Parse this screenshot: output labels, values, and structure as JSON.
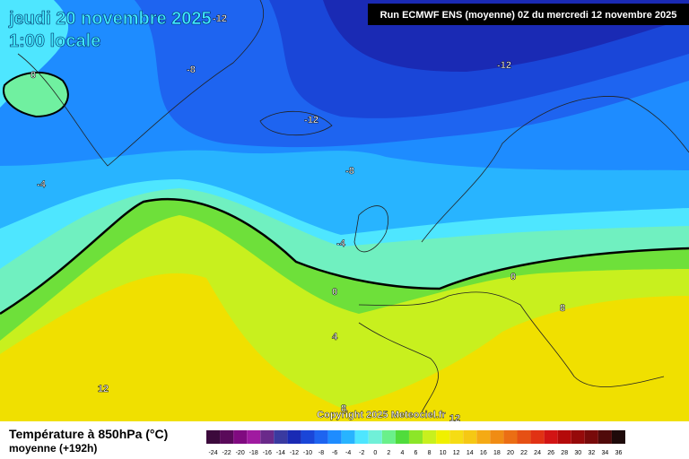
{
  "header": {
    "date": "jeudi 20 novembre 2025",
    "time": "1:00 locale",
    "run": "Run ECMWF ENS (moyenne) 0Z du mercredi 12 novembre 2025"
  },
  "contour_labels": [
    "-12",
    "-8",
    "-12",
    "-12",
    "-8",
    "-4",
    "-4",
    "0",
    "0",
    "0",
    "4",
    "8",
    "12",
    "8",
    "12"
  ],
  "copyright": "Copyright 2025 Meteociel.fr",
  "footer": {
    "title": "Température à 850hPa (°C)",
    "subtitle": "moyenne  (+192h)"
  },
  "legend": {
    "labels": [
      -24,
      -22,
      -20,
      -18,
      -16,
      -14,
      -12,
      -10,
      -8,
      -6,
      -4,
      -2,
      0,
      2,
      4,
      6,
      8,
      10,
      12,
      14,
      16,
      18,
      20,
      22,
      24,
      26,
      28,
      30,
      32,
      34,
      36
    ],
    "colors": [
      "#3c0a3c",
      "#5a0a5a",
      "#800a80",
      "#a01aa0",
      "#6a2a8a",
      "#3a3aa0",
      "#1a2ab4",
      "#1a46d8",
      "#1e64f0",
      "#1e8cff",
      "#28b4ff",
      "#4ee6ff",
      "#70f0d8",
      "#6af08a",
      "#50dc3c",
      "#8ce628",
      "#c8f01e",
      "#f0f000",
      "#f5dc14",
      "#f5c814",
      "#f5aa14",
      "#f08c14",
      "#eb6e14",
      "#e65014",
      "#e13214",
      "#d21414",
      "#b40a0a",
      "#960a0a",
      "#780a0a",
      "#500a0a",
      "#1e0a0a"
    ]
  }
}
